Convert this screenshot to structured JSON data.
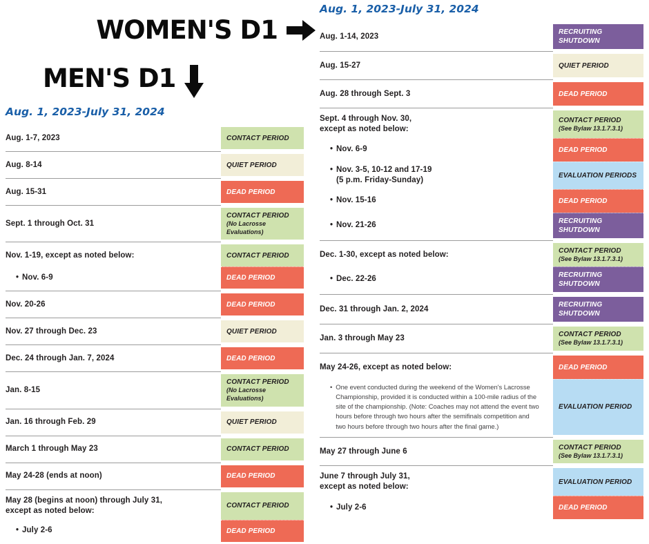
{
  "headings": {
    "women": {
      "label": "WOMEN'S D1",
      "arrow_icon": "right-arrow"
    },
    "men": {
      "label": "MEN'S D1",
      "arrow_icon": "down-arrow"
    }
  },
  "colors": {
    "title_blue": "#1a5fa8",
    "heading_black": "#0b0b0b",
    "divider_gray": "#9b9b9b",
    "label_text": "#221f20",
    "note_text": "#414042"
  },
  "period_styles": {
    "contact": {
      "bg": "#cfe2ae",
      "fg": "#221f20"
    },
    "quiet": {
      "bg": "#f2eed8",
      "fg": "#221f20"
    },
    "dead": {
      "bg": "#ee6a55",
      "fg": "#ffffff"
    },
    "shutdown": {
      "bg": "#7c5e9c",
      "fg": "#ffffff"
    },
    "evaluation": {
      "bg": "#b7dcf3",
      "fg": "#221f20"
    }
  },
  "calendars": [
    {
      "id": "mens-d1",
      "title": "Aug. 1, 2023-July 31, 2024",
      "groups": [
        {
          "rows": [
            {
              "label": "Aug. 1-7, 2023",
              "badge": "CONTACT PERIOD",
              "type": "contact"
            }
          ]
        },
        {
          "rows": [
            {
              "label": "Aug. 8-14",
              "badge": "QUIET PERIOD",
              "type": "quiet"
            }
          ]
        },
        {
          "rows": [
            {
              "label": "Aug. 15-31",
              "badge": "DEAD PERIOD",
              "type": "dead"
            }
          ]
        },
        {
          "rows": [
            {
              "label": "Sept. 1 through Oct. 31",
              "badge": "CONTACT PERIOD",
              "badge_sub": "(No Lacrosse Evaluations)",
              "type": "contact"
            }
          ]
        },
        {
          "rows": [
            {
              "label": "Nov. 1-19, except as noted below:",
              "badge": "CONTACT PERIOD",
              "type": "contact"
            },
            {
              "label": "Nov. 6-9",
              "bullet": true,
              "badge": "DEAD PERIOD",
              "type": "dead"
            }
          ]
        },
        {
          "rows": [
            {
              "label": "Nov. 20-26",
              "badge": "DEAD PERIOD",
              "type": "dead"
            }
          ]
        },
        {
          "rows": [
            {
              "label": "Nov. 27 through Dec. 23",
              "badge": "QUIET PERIOD",
              "type": "quiet"
            }
          ]
        },
        {
          "rows": [
            {
              "label": "Dec. 24 through Jan. 7, 2024",
              "badge": "DEAD PERIOD",
              "type": "dead"
            }
          ]
        },
        {
          "rows": [
            {
              "label": "Jan. 8-15",
              "badge": "CONTACT PERIOD",
              "badge_sub": "(No Lacrosse Evaluations)",
              "type": "contact"
            }
          ]
        },
        {
          "rows": [
            {
              "label": "Jan. 16 through Feb. 29",
              "badge": "QUIET PERIOD",
              "type": "quiet"
            }
          ]
        },
        {
          "rows": [
            {
              "label": "March 1 through May 23",
              "badge": "CONTACT PERIOD",
              "type": "contact"
            }
          ]
        },
        {
          "rows": [
            {
              "label": "May 24-28 (ends at noon)",
              "badge": "DEAD PERIOD",
              "type": "dead"
            }
          ]
        },
        {
          "rows": [
            {
              "label": "May 28 (begins at noon) through July 31,\nexcept as noted below:",
              "badge": "CONTACT PERIOD",
              "type": "contact"
            },
            {
              "label": "July 2-6",
              "bullet": true,
              "badge": "DEAD PERIOD",
              "type": "dead"
            }
          ]
        }
      ]
    },
    {
      "id": "womens-d1",
      "title": "Aug. 1, 2023-July 31, 2024",
      "groups": [
        {
          "rows": [
            {
              "label": "Aug. 1-14, 2023",
              "badge": "RECRUITING SHUTDOWN",
              "type": "shutdown"
            }
          ]
        },
        {
          "rows": [
            {
              "label": "Aug. 15-27",
              "badge": "QUIET PERIOD",
              "type": "quiet"
            }
          ]
        },
        {
          "rows": [
            {
              "label": "Aug. 28 through Sept. 3",
              "badge": "DEAD PERIOD",
              "type": "dead"
            }
          ]
        },
        {
          "rows": [
            {
              "label": "Sept. 4 through Nov. 30,\nexcept as noted below:",
              "badge": "CONTACT PERIOD",
              "badge_sub": "(See Bylaw 13.1.7.3.1)",
              "type": "contact"
            },
            {
              "label": "Nov. 6-9",
              "bullet": true,
              "badge": "DEAD PERIOD",
              "type": "dead"
            },
            {
              "label": "Nov. 3-5, 10-12 and 17-19\n(5 p.m. Friday-Sunday)",
              "bullet": true,
              "badge": "EVALUATION PERIODS",
              "type": "evaluation"
            },
            {
              "label": "Nov. 15-16",
              "bullet": true,
              "badge": "DEAD PERIOD",
              "type": "dead"
            },
            {
              "label": "Nov. 21-26",
              "bullet": true,
              "badge": "RECRUITING SHUTDOWN",
              "type": "shutdown"
            }
          ]
        },
        {
          "rows": [
            {
              "label": "Dec. 1-30, except as noted below:",
              "badge": "CONTACT PERIOD",
              "badge_sub": "(See Bylaw 13.1.7.3.1)",
              "type": "contact"
            },
            {
              "label": "Dec. 22-26",
              "bullet": true,
              "badge": "RECRUITING SHUTDOWN",
              "type": "shutdown"
            }
          ]
        },
        {
          "rows": [
            {
              "label": "Dec. 31 through Jan. 2, 2024",
              "badge": "RECRUITING SHUTDOWN",
              "type": "shutdown"
            }
          ]
        },
        {
          "rows": [
            {
              "label": "Jan. 3 through May 23",
              "badge": "CONTACT PERIOD",
              "badge_sub": "(See Bylaw 13.1.7.3.1)",
              "type": "contact"
            }
          ]
        },
        {
          "rows": [
            {
              "label": "May 24-26, except as noted below:",
              "badge": "DEAD PERIOD",
              "type": "dead"
            },
            {
              "label": "One event conducted during the weekend of the Women's Lacrosse Championship, provided it is conducted within a 100-mile radius of the site of the championship. (Note: Coaches may not attend the event two hours before through two hours after the semifinals competition and two hours before through two hours after the final game.)",
              "bullet": true,
              "note": true,
              "badge": "EVALUATION PERIOD",
              "type": "evaluation"
            }
          ]
        },
        {
          "rows": [
            {
              "label": "May 27 through June 6",
              "badge": "CONTACT PERIOD",
              "badge_sub": "(See Bylaw 13.1.7.3.1)",
              "type": "contact"
            }
          ]
        },
        {
          "rows": [
            {
              "label": "June 7 through July 31,\nexcept as noted below:",
              "badge": "EVALUATION PERIOD",
              "type": "evaluation"
            },
            {
              "label": "July 2-6",
              "bullet": true,
              "badge": "DEAD PERIOD",
              "type": "dead"
            }
          ]
        }
      ]
    }
  ]
}
